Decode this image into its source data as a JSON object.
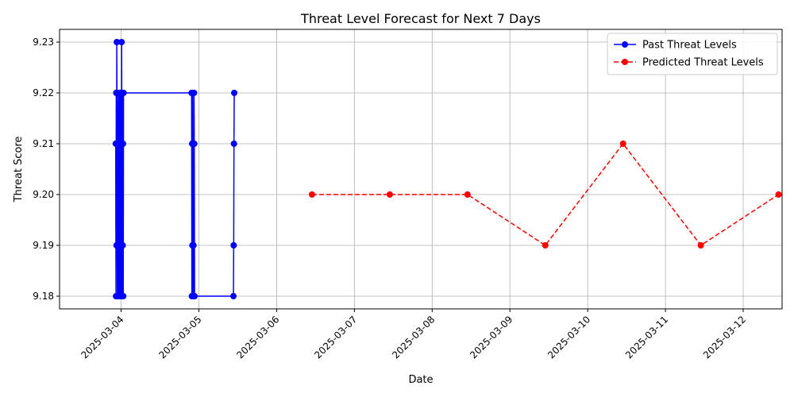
{
  "chart_data": {
    "type": "line",
    "title": "Threat Level Forecast for Next 7 Days",
    "xlabel": "Date",
    "ylabel": "Threat Score",
    "x_ticks": [
      "2025-03-04",
      "2025-03-05",
      "2025-03-06",
      "2025-03-07",
      "2025-03-08",
      "2025-03-09",
      "2025-03-10",
      "2025-03-11",
      "2025-03-12"
    ],
    "y_ticks": [
      "9.18",
      "9.19",
      "9.20",
      "9.21",
      "9.22",
      "9.23"
    ],
    "xlim": [
      "2025-03-03 05:00",
      "2025-03-12 12:00"
    ],
    "ylim": [
      9.1775,
      9.2325
    ],
    "grid": true,
    "legend_position": "top-right",
    "series": [
      {
        "name": "Past Threat Levels",
        "color": "#0000ff",
        "line_style": "solid",
        "marker": "circle",
        "points": [
          [
            "2025-03-03 22:20",
            9.21
          ],
          [
            "2025-03-03 22:25",
            9.18
          ],
          [
            "2025-03-03 22:30",
            9.22
          ],
          [
            "2025-03-03 22:35",
            9.19
          ],
          [
            "2025-03-03 22:40",
            9.23
          ],
          [
            "2025-03-03 22:45",
            9.21
          ],
          [
            "2025-03-03 22:50",
            9.18
          ],
          [
            "2025-03-03 22:55",
            9.22
          ],
          [
            "2025-03-03 23:00",
            9.21
          ],
          [
            "2025-03-03 23:05",
            9.19
          ],
          [
            "2025-03-03 23:10",
            9.18
          ],
          [
            "2025-03-03 23:15",
            9.21
          ],
          [
            "2025-03-03 23:20",
            9.22
          ],
          [
            "2025-03-03 23:25",
            9.18
          ],
          [
            "2025-03-03 23:30",
            9.19
          ],
          [
            "2025-03-03 23:35",
            9.21
          ],
          [
            "2025-03-03 23:40",
            9.22
          ],
          [
            "2025-03-03 23:45",
            9.18
          ],
          [
            "2025-03-03 23:50",
            9.21
          ],
          [
            "2025-03-03 23:55",
            9.22
          ],
          [
            "2025-03-04 00:00",
            9.19
          ],
          [
            "2025-03-04 00:05",
            9.18
          ],
          [
            "2025-03-04 00:10",
            9.23
          ],
          [
            "2025-03-04 00:15",
            9.21
          ],
          [
            "2025-03-04 00:20",
            9.18
          ],
          [
            "2025-03-04 00:25",
            9.22
          ],
          [
            "2025-03-04 00:30",
            9.19
          ],
          [
            "2025-03-04 00:35",
            9.21
          ],
          [
            "2025-03-04 00:40",
            9.18
          ],
          [
            "2025-03-04 00:45",
            9.22
          ],
          [
            "2025-03-04 21:45",
            9.22
          ],
          [
            "2025-03-04 21:50",
            9.18
          ],
          [
            "2025-03-04 21:55",
            9.21
          ],
          [
            "2025-03-04 22:00",
            9.19
          ],
          [
            "2025-03-04 22:05",
            9.22
          ],
          [
            "2025-03-04 22:10",
            9.18
          ],
          [
            "2025-03-04 22:15",
            9.21
          ],
          [
            "2025-03-04 22:20",
            9.19
          ],
          [
            "2025-03-04 22:25",
            9.18
          ],
          [
            "2025-03-04 22:30",
            9.22
          ],
          [
            "2025-03-04 22:35",
            9.21
          ],
          [
            "2025-03-04 22:40",
            9.18
          ],
          [
            "2025-03-05 10:40",
            9.18
          ],
          [
            "2025-03-05 10:45",
            9.19
          ],
          [
            "2025-03-05 10:50",
            9.21
          ],
          [
            "2025-03-05 10:55",
            9.22
          ]
        ]
      },
      {
        "name": "Predicted Threat Levels",
        "color": "#ff0000",
        "line_style": "dashed",
        "marker": "circle",
        "points": [
          [
            "2025-03-06 10:55",
            9.2
          ],
          [
            "2025-03-07 10:55",
            9.2
          ],
          [
            "2025-03-08 10:55",
            9.2
          ],
          [
            "2025-03-09 10:55",
            9.19
          ],
          [
            "2025-03-10 10:55",
            9.21
          ],
          [
            "2025-03-11 10:55",
            9.19
          ],
          [
            "2025-03-12 10:55",
            9.2
          ]
        ]
      }
    ]
  }
}
